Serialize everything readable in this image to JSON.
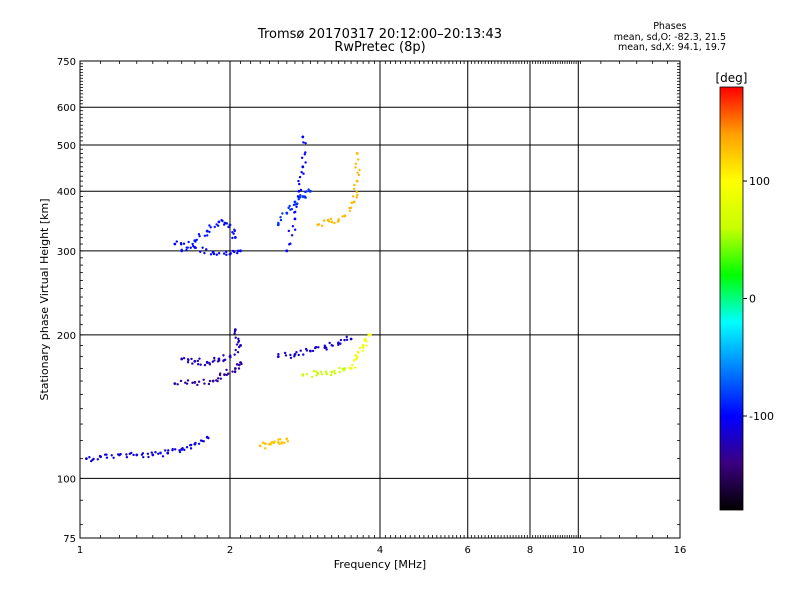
{
  "chart_data": {
    "type": "scatter",
    "title": "Tromsø 20170317 20:12:00–20:13:43",
    "subtitle": "RwPretec (8p)",
    "xlabel": "Frequency [MHz]",
    "ylabel": "Stationary phase Virtual Height [km]",
    "xscale": "log",
    "yscale": "log",
    "xlim": [
      1,
      16
    ],
    "ylim": [
      75,
      750
    ],
    "xticks": [
      1,
      2,
      4,
      6,
      8,
      10,
      16
    ],
    "yticks": [
      75,
      100,
      200,
      300,
      400,
      500,
      600,
      750
    ],
    "x_gridlines": [
      2,
      4,
      6,
      8,
      10
    ],
    "y_gridlines": [
      100,
      200,
      300,
      400,
      500,
      600
    ],
    "colorbar": {
      "label": "[deg]",
      "ticks": [
        100,
        0,
        -100
      ],
      "range": [
        -180,
        180
      ],
      "colormap": [
        "#000000",
        "#3b0080",
        "#0000ff",
        "#0080ff",
        "#00ffff",
        "#00ff00",
        "#c8ff00",
        "#ffff00",
        "#ffa000",
        "#ff0000"
      ]
    },
    "phase_stats": {
      "heading": "Phases",
      "line_o": "mean, sd,O: -82.3, 21.5",
      "line_x": "mean, sd,X:  94.1, 19.7"
    },
    "echo_traces": [
      {
        "phase": -110,
        "points": [
          [
            1.03,
            110
          ],
          [
            1.1,
            111
          ],
          [
            1.2,
            112
          ],
          [
            1.3,
            112
          ],
          [
            1.4,
            112
          ],
          [
            1.5,
            113
          ],
          [
            1.6,
            115
          ],
          [
            1.7,
            118
          ],
          [
            1.8,
            122
          ]
        ]
      },
      {
        "phase": -95,
        "points": [
          [
            1.6,
            300
          ],
          [
            1.7,
            315
          ],
          [
            1.8,
            330
          ],
          [
            1.9,
            345
          ],
          [
            2.0,
            340
          ],
          [
            2.05,
            320
          ]
        ]
      },
      {
        "phase": -100,
        "points": [
          [
            1.55,
            310
          ],
          [
            1.7,
            305
          ],
          [
            1.85,
            298
          ],
          [
            2.0,
            295
          ],
          [
            2.1,
            300
          ]
        ]
      },
      {
        "phase": -120,
        "points": [
          [
            1.6,
            178
          ],
          [
            1.7,
            176
          ],
          [
            1.8,
            175
          ],
          [
            1.9,
            178
          ],
          [
            2.0,
            180
          ],
          [
            2.1,
            190
          ],
          [
            2.05,
            205
          ]
        ]
      },
      {
        "phase": -130,
        "points": [
          [
            1.55,
            158
          ],
          [
            1.7,
            159
          ],
          [
            1.85,
            160
          ],
          [
            1.95,
            165
          ],
          [
            2.05,
            170
          ],
          [
            2.1,
            175
          ]
        ]
      },
      {
        "phase": -115,
        "points": [
          [
            2.5,
            180
          ],
          [
            2.7,
            182
          ],
          [
            2.9,
            185
          ],
          [
            3.1,
            188
          ],
          [
            3.3,
            192
          ],
          [
            3.5,
            196
          ]
        ]
      },
      {
        "phase": -100,
        "points": [
          [
            2.6,
            300
          ],
          [
            2.7,
            350
          ],
          [
            2.75,
            400
          ],
          [
            2.8,
            450
          ],
          [
            2.8,
            520
          ]
        ]
      },
      {
        "phase": -85,
        "points": [
          [
            2.5,
            340
          ],
          [
            2.6,
            360
          ],
          [
            2.7,
            380
          ],
          [
            2.8,
            390
          ],
          [
            2.9,
            400
          ]
        ]
      },
      {
        "phase": 130,
        "points": [
          [
            3.0,
            340
          ],
          [
            3.2,
            345
          ],
          [
            3.4,
            355
          ],
          [
            3.55,
            380
          ],
          [
            3.6,
            420
          ],
          [
            3.6,
            480
          ]
        ]
      },
      {
        "phase": 125,
        "points": [
          [
            2.3,
            117
          ],
          [
            2.4,
            118
          ],
          [
            2.5,
            119
          ],
          [
            2.6,
            121
          ]
        ]
      },
      {
        "phase": 60,
        "points": [
          [
            2.8,
            165
          ],
          [
            3.0,
            166
          ],
          [
            3.2,
            167
          ],
          [
            3.4,
            170
          ]
        ]
      },
      {
        "phase": 90,
        "points": [
          [
            3.5,
            170
          ],
          [
            3.6,
            180
          ],
          [
            3.7,
            190
          ],
          [
            3.8,
            200
          ]
        ]
      }
    ]
  }
}
